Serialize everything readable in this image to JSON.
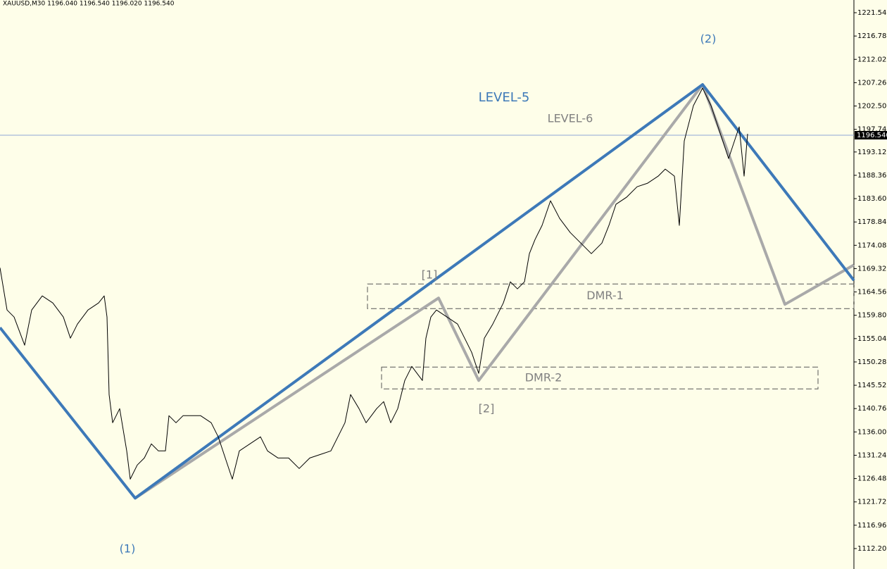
{
  "chart_data": {
    "type": "line",
    "title": "XAUUSD,M30  1196.040 1196.540 1196.020 1196.540",
    "xlim": [
      0,
      1213
    ],
    "ylim": [
      1108.03,
      1224.13
    ],
    "yticks": [
      {
        "value": 1221.54,
        "label": "1221.540"
      },
      {
        "value": 1216.78,
        "label": "1216.780"
      },
      {
        "value": 1212.02,
        "label": "1212.020"
      },
      {
        "value": 1207.26,
        "label": "1207.260"
      },
      {
        "value": 1202.5,
        "label": "1202.500"
      },
      {
        "value": 1197.74,
        "label": "1197.740"
      },
      {
        "value": 1193.12,
        "label": "1193.120"
      },
      {
        "value": 1188.36,
        "label": "1188.360"
      },
      {
        "value": 1183.6,
        "label": "1183.600"
      },
      {
        "value": 1178.84,
        "label": "1178.840"
      },
      {
        "value": 1174.08,
        "label": "1174.080"
      },
      {
        "value": 1169.32,
        "label": "1169.320"
      },
      {
        "value": 1164.56,
        "label": "1164.560"
      },
      {
        "value": 1159.8,
        "label": "1159.800"
      },
      {
        "value": 1155.04,
        "label": "1155.040"
      },
      {
        "value": 1150.28,
        "label": "1150.280"
      },
      {
        "value": 1145.52,
        "label": "1145.520"
      },
      {
        "value": 1140.76,
        "label": "1140.760"
      },
      {
        "value": 1136,
        "label": "1136.000"
      },
      {
        "value": 1131.24,
        "label": "1131.240"
      },
      {
        "value": 1126.48,
        "label": "1126.480"
      },
      {
        "value": 1121.72,
        "label": "1121.720"
      },
      {
        "value": 1116.96,
        "label": "1116.960"
      },
      {
        "value": 1112.2,
        "label": "1112.200"
      }
    ],
    "last_price": {
      "value": 1196.54,
      "label": "1196.540"
    },
    "series": [
      {
        "color": "#000000",
        "x": [
          0,
          10,
          20,
          35,
          45,
          60,
          75,
          90,
          100,
          110,
          125,
          140,
          148,
          152,
          155,
          160,
          170,
          180,
          185,
          195,
          205,
          215,
          225,
          235,
          240,
          250,
          260,
          270,
          285,
          300,
          310,
          320,
          330,
          340,
          355,
          370,
          380,
          395,
          410,
          425,
          440,
          455,
          470,
          480,
          490,
          498,
          510,
          520,
          535,
          545,
          555,
          565,
          575,
          585,
          600,
          605,
          612,
          620,
          635,
          650,
          660,
          670,
          680,
          688,
          700,
          715,
          725,
          735,
          745,
          752,
          760,
          770,
          782,
          795,
          810,
          825,
          840,
          855,
          865,
          875,
          890,
          905,
          920,
          935,
          945,
          958,
          965,
          972,
          985,
          998,
          1010,
          1020,
          1035,
          1045,
          1050,
          1057,
          1062
        ],
        "values": [
          1169.5,
          1160.88,
          1159.44,
          1153.69,
          1160.88,
          1163.75,
          1162.31,
          1159.44,
          1155.13,
          1158.0,
          1160.88,
          1162.31,
          1163.75,
          1159.44,
          1143.62,
          1137.87,
          1140.75,
          1132.12,
          1126.37,
          1129.25,
          1130.68,
          1133.56,
          1132.12,
          1132.12,
          1139.31,
          1137.87,
          1139.31,
          1139.31,
          1139.31,
          1137.87,
          1135.0,
          1130.68,
          1126.37,
          1132.12,
          1133.56,
          1135.0,
          1132.12,
          1130.68,
          1130.68,
          1128.53,
          1130.68,
          1131.4,
          1132.12,
          1135.0,
          1137.87,
          1143.62,
          1140.75,
          1137.87,
          1140.75,
          1142.19,
          1137.87,
          1140.75,
          1146.5,
          1149.37,
          1146.5,
          1155.13,
          1159.44,
          1160.88,
          1159.44,
          1158.0,
          1155.13,
          1152.25,
          1147.94,
          1155.13,
          1158.0,
          1162.31,
          1166.63,
          1165.19,
          1166.63,
          1172.38,
          1175.25,
          1178.13,
          1183.16,
          1179.56,
          1176.69,
          1174.53,
          1172.38,
          1174.53,
          1178.13,
          1182.44,
          1183.88,
          1186.03,
          1186.75,
          1188.19,
          1189.63,
          1188.19,
          1178.13,
          1195.38,
          1202.57,
          1206.16,
          1202.57,
          1198.25,
          1191.78,
          1196.1,
          1198.25,
          1188.19,
          1196.82
        ]
      },
      {
        "name": "LEVEL-5",
        "color": "#3d79b8",
        "x": [
          0,
          192,
          998,
          1213
        ],
        "values": [
          1157.28,
          1122.49,
          1206.88,
          1166.91
        ]
      },
      {
        "name": "LEVEL-6",
        "color": "#a9a9a9",
        "x": [
          192,
          623,
          680,
          998,
          1115,
          1213
        ],
        "values": [
          1122.49,
          1163.32,
          1146.5,
          1206.88,
          1162.03,
          1170.08
        ]
      }
    ],
    "zones": [
      {
        "label": "DMR-1",
        "x": [
          522,
          1213
        ],
        "y": [
          1161.16,
          1166.19
        ]
      },
      {
        "label": "DMR-2",
        "x": [
          542,
          1162
        ],
        "y": [
          1144.77,
          1149.23
        ]
      }
    ],
    "annotations": [
      "(1)",
      "(2)",
      "[1]",
      "[2]"
    ]
  }
}
